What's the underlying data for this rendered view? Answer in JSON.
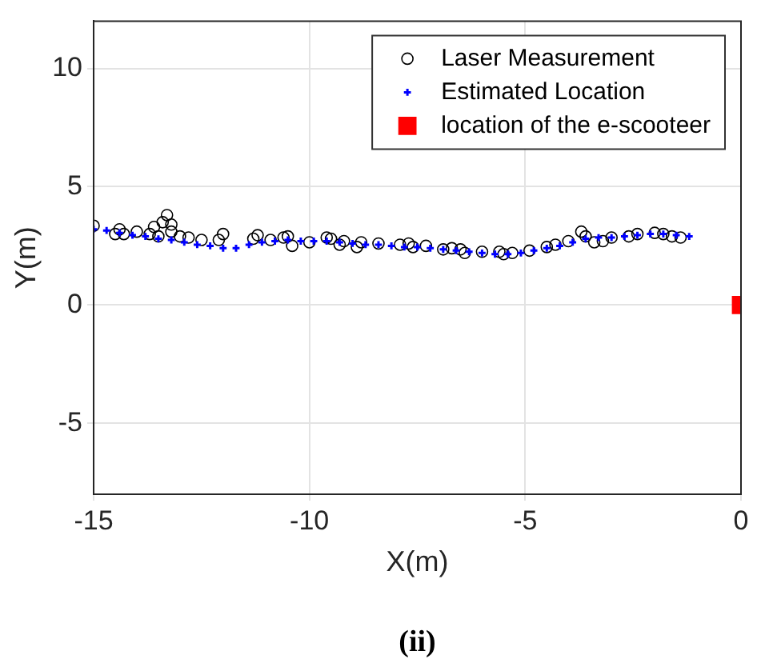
{
  "chart_data": {
    "type": "scatter",
    "xlabel": "X(m)",
    "ylabel": "Y(m)",
    "annotations": [
      "(ii)"
    ],
    "xlim": [
      -15,
      0
    ],
    "ylim": [
      -8,
      12
    ],
    "xticks": [
      -15,
      -10,
      -5,
      0
    ],
    "yticks": [
      -5,
      0,
      5,
      10
    ],
    "grid": true,
    "legend": "top right",
    "series": [
      {
        "name": "Laser Measurement",
        "color": "#000000",
        "marker": "circle",
        "x": [
          -15,
          -14.5,
          -14.4,
          -14.3,
          -14.0,
          -13.7,
          -13.6,
          -13.5,
          -13.4,
          -13.3,
          -13.2,
          -13.2,
          -13.0,
          -12.8,
          -12.5,
          -12.1,
          -12.0,
          -11.3,
          -11.2,
          -10.9,
          -10.6,
          -10.5,
          -10.4,
          -10.0,
          -9.6,
          -9.5,
          -9.3,
          -9.2,
          -8.9,
          -8.8,
          -8.4,
          -7.9,
          -7.7,
          -7.6,
          -7.3,
          -6.9,
          -6.7,
          -6.5,
          -6.4,
          -6.0,
          -5.6,
          -5.5,
          -5.3,
          -4.9,
          -4.5,
          -4.3,
          -4.0,
          -3.7,
          -3.6,
          -3.4,
          -3.2,
          -3.0,
          -2.6,
          -2.4,
          -2.0,
          -1.8,
          -1.6,
          -1.4
        ],
        "values": [
          3.35,
          3.0,
          3.2,
          3.0,
          3.1,
          3.0,
          3.3,
          2.9,
          3.5,
          3.8,
          3.4,
          3.1,
          2.9,
          2.85,
          2.75,
          2.75,
          3.0,
          2.8,
          2.95,
          2.75,
          2.85,
          2.9,
          2.5,
          2.65,
          2.85,
          2.8,
          2.55,
          2.7,
          2.45,
          2.65,
          2.6,
          2.55,
          2.6,
          2.45,
          2.5,
          2.35,
          2.4,
          2.35,
          2.2,
          2.25,
          2.25,
          2.15,
          2.2,
          2.3,
          2.45,
          2.55,
          2.7,
          3.1,
          2.9,
          2.65,
          2.7,
          2.85,
          2.9,
          3.0,
          3.05,
          3.0,
          2.9,
          2.85
        ]
      },
      {
        "name": "Estimated Location",
        "color": "#0000ff",
        "marker": "cross",
        "x": [
          -15,
          -14.7,
          -14.4,
          -14.1,
          -13.8,
          -13.5,
          -13.2,
          -12.9,
          -12.6,
          -12.3,
          -12.0,
          -11.7,
          -11.4,
          -11.1,
          -10.8,
          -10.5,
          -10.2,
          -9.9,
          -9.6,
          -9.3,
          -9.0,
          -8.7,
          -8.4,
          -8.1,
          -7.8,
          -7.5,
          -7.2,
          -6.9,
          -6.6,
          -6.3,
          -6.0,
          -5.7,
          -5.4,
          -5.1,
          -4.8,
          -4.5,
          -4.2,
          -3.9,
          -3.6,
          -3.3,
          -3.0,
          -2.7,
          -2.4,
          -2.1,
          -1.8,
          -1.5,
          -1.2
        ],
        "values": [
          3.2,
          3.15,
          3.05,
          2.95,
          2.9,
          2.8,
          2.75,
          2.65,
          2.55,
          2.5,
          2.4,
          2.4,
          2.55,
          2.65,
          2.7,
          2.75,
          2.7,
          2.7,
          2.7,
          2.65,
          2.6,
          2.55,
          2.55,
          2.5,
          2.45,
          2.45,
          2.4,
          2.35,
          2.3,
          2.25,
          2.2,
          2.15,
          2.15,
          2.2,
          2.3,
          2.4,
          2.5,
          2.65,
          2.8,
          2.85,
          2.85,
          2.9,
          2.95,
          3.0,
          3.0,
          2.95,
          2.9
        ]
      },
      {
        "name": "location of the e-scooteer",
        "color": "#ff0000",
        "marker": "square",
        "x": [
          0
        ],
        "values": [
          0
        ]
      }
    ]
  }
}
